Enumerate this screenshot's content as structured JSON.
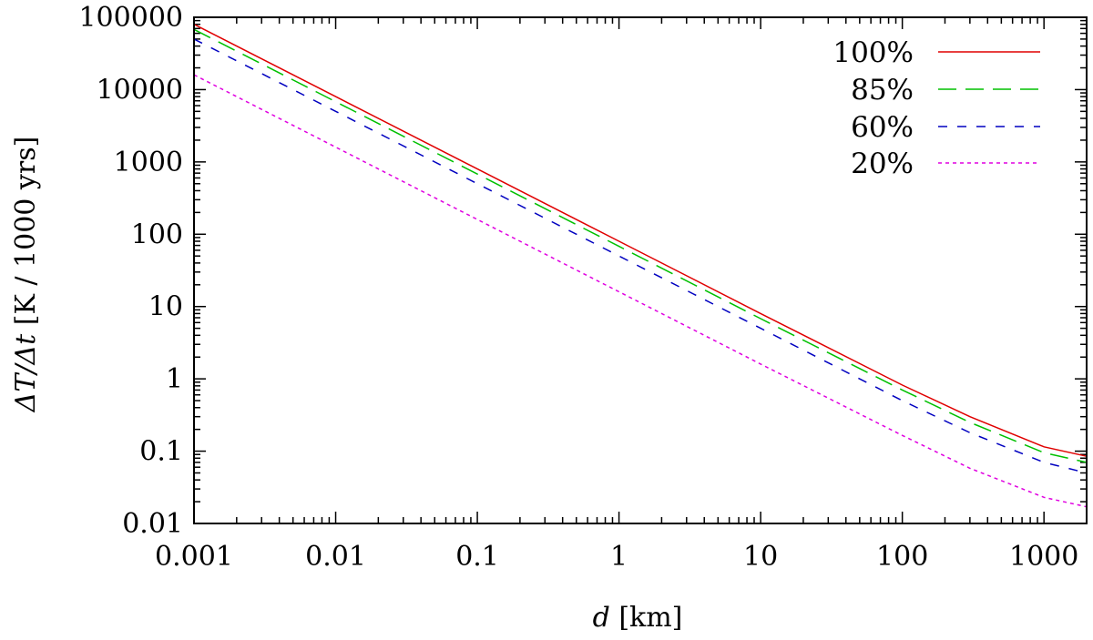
{
  "chart_data": {
    "type": "line",
    "title": "",
    "x_scale": "log",
    "y_scale": "log",
    "xlim": [
      0.001,
      2000
    ],
    "ylim": [
      0.01,
      100000
    ],
    "x_ticks": [
      {
        "value": 0.001,
        "label": "0.001"
      },
      {
        "value": 0.01,
        "label": "0.01"
      },
      {
        "value": 0.1,
        "label": "0.1"
      },
      {
        "value": 1,
        "label": "1"
      },
      {
        "value": 10,
        "label": "10"
      },
      {
        "value": 100,
        "label": "100"
      },
      {
        "value": 1000,
        "label": "1000"
      }
    ],
    "y_ticks": [
      {
        "value": 0.01,
        "label": "0.01"
      },
      {
        "value": 0.1,
        "label": "0.1"
      },
      {
        "value": 1,
        "label": "1"
      },
      {
        "value": 10,
        "label": "10"
      },
      {
        "value": 100,
        "label": "100"
      },
      {
        "value": 1000,
        "label": "1000"
      },
      {
        "value": 10000,
        "label": "10000"
      },
      {
        "value": 100000,
        "label": "100000"
      }
    ],
    "xlabel": {
      "var": "d",
      "rest": " [km]"
    },
    "ylabel": {
      "var": "ΔT/Δt",
      "rest": "  [K / 1000 yrs]"
    },
    "grid": false,
    "legend_position": "top-right",
    "x": [
      0.001,
      0.01,
      0.1,
      1,
      10,
      100,
      300,
      1000,
      2000
    ],
    "series": [
      {
        "name": "100%",
        "color": "#e00000",
        "dash": "solid",
        "values": [
          80000,
          8000,
          800,
          80,
          8,
          0.82,
          0.3,
          0.115,
          0.085
        ]
      },
      {
        "name": "85%",
        "color": "#00c000",
        "dash": "long-dash",
        "values": [
          68000,
          6800,
          680,
          68,
          6.8,
          0.7,
          0.25,
          0.095,
          0.07
        ]
      },
      {
        "name": "60%",
        "color": "#0000c0",
        "dash": "short-dash",
        "values": [
          50000,
          5000,
          500,
          50,
          5,
          0.5,
          0.18,
          0.07,
          0.05
        ]
      },
      {
        "name": "20%",
        "color": "#e000e0",
        "dash": "dotted",
        "values": [
          16000,
          1600,
          160,
          16,
          1.6,
          0.165,
          0.058,
          0.023,
          0.017
        ]
      }
    ]
  }
}
